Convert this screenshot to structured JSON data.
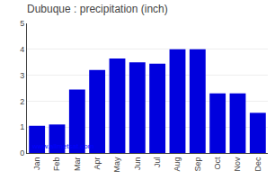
{
  "chart_data": {
    "type": "bar",
    "title": "Dubuque : precipitation (inch)",
    "categories": [
      "Jan",
      "Feb",
      "Mar",
      "Apr",
      "May",
      "Jun",
      "Jul",
      "Aug",
      "Sep",
      "Oct",
      "Nov",
      "Dec"
    ],
    "values": [
      1.05,
      1.1,
      2.45,
      3.2,
      3.65,
      3.5,
      3.45,
      4.0,
      4.0,
      2.3,
      2.3,
      1.55
    ],
    "color": "#0000DD",
    "ylim": [
      0,
      5
    ],
    "yticks": [
      0,
      1,
      2,
      3,
      4,
      5
    ],
    "grid": true,
    "annotations": [
      "www.allmetsat.com"
    ]
  }
}
